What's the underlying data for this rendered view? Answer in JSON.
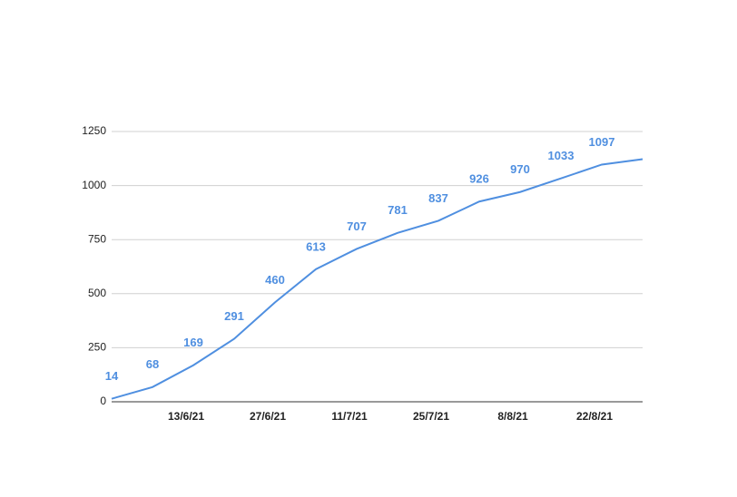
{
  "chart_data": {
    "type": "line",
    "categories": [
      null,
      null,
      "13/6/21",
      null,
      "27/6/21",
      null,
      "11/7/21",
      null,
      "25/7/21",
      null,
      "8/8/21",
      null,
      "22/8/21",
      null
    ],
    "series": [
      {
        "color": "#4f8fe0",
        "values": [
          14,
          68,
          169,
          291,
          460,
          613,
          707,
          781,
          837,
          926,
          970,
          1033,
          1097,
          1122
        ],
        "value_labels": [
          "14",
          "68",
          "169",
          "291",
          "460",
          "613",
          "707",
          "781",
          "837",
          "926",
          "970",
          "1033",
          "1097",
          null
        ]
      }
    ],
    "ylim": [
      0,
      1250
    ],
    "yticks": [
      0,
      250,
      500,
      750,
      1000,
      1250
    ],
    "grid": true
  }
}
